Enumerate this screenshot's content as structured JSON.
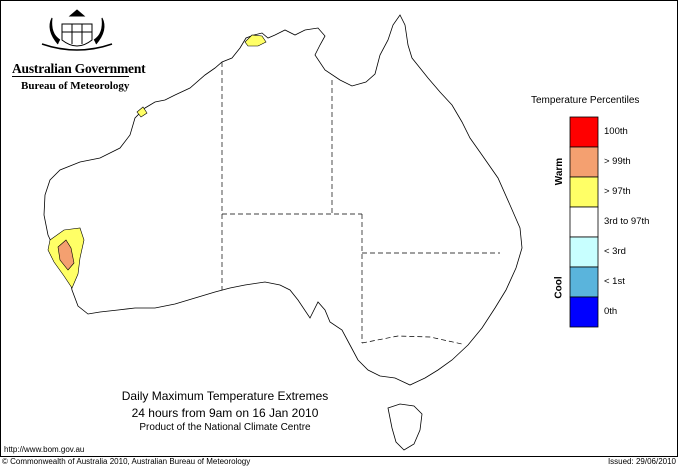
{
  "header": {
    "government": "Australian Government",
    "bureau": "Bureau of Meteorology"
  },
  "legend": {
    "title": "Temperature Percentiles",
    "warm_label": "Warm",
    "cool_label": "Cool",
    "classes": [
      {
        "label": "100th",
        "color": "#ff0000"
      },
      {
        "label": "> 99th",
        "color": "#f4a070"
      },
      {
        "label": "> 97th",
        "color": "#ffff66"
      },
      {
        "label": "3rd to 97th",
        "color": "#ffffff"
      },
      {
        "label": "< 3rd",
        "color": "#c8ffff"
      },
      {
        "label": "< 1st",
        "color": "#5ab4dc"
      },
      {
        "label": "0th",
        "color": "#0000ff"
      }
    ]
  },
  "caption": {
    "line1": "Daily Maximum Temperature Extremes",
    "line2": "24 hours from 9am on 16 Jan 2010",
    "line3": "Product of the National Climate Centre"
  },
  "footer": {
    "url": "http://www.bom.gov.au",
    "copyright": "© Commonwealth of Australia 2010, Australian Bureau of Meteorology",
    "issued": "Issued: 29/06/2010"
  },
  "regions": {
    "sw_wa_warm": "> 97th",
    "sw_wa_hot": "> 99th",
    "top_end_warm": "> 97th",
    "pilbara_warm": "> 97th"
  }
}
